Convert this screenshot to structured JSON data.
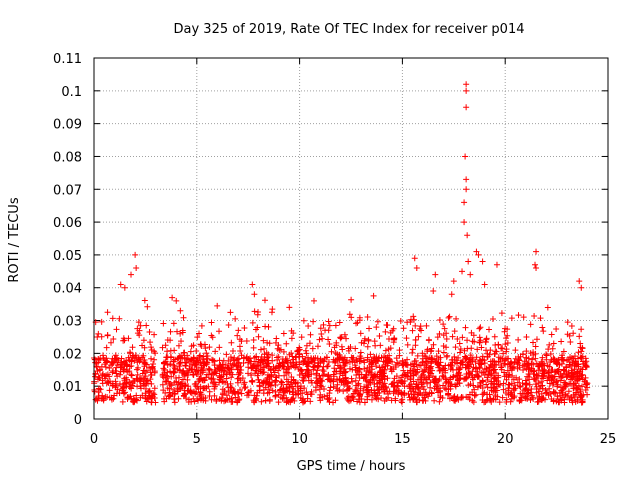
{
  "chart_data": {
    "type": "scatter",
    "title": "Day 325 of 2019, Rate Of TEC Index for receiver p014",
    "xlabel": "GPS time / hours",
    "ylabel": "ROTI / TECUs",
    "xlim": [
      0,
      25
    ],
    "ylim": [
      0,
      0.11
    ],
    "xticks": [
      0,
      5,
      10,
      15,
      20,
      25
    ],
    "xtick_labels": [
      "0",
      "5",
      "10",
      "15",
      "20",
      "25"
    ],
    "yticks": [
      0,
      0.01,
      0.02,
      0.03,
      0.04,
      0.05,
      0.06,
      0.07,
      0.08,
      0.09,
      0.1,
      0.11
    ],
    "ytick_labels": [
      "0",
      "0.01",
      "0.02",
      "0.03",
      "0.04",
      "0.05",
      "0.06",
      "0.07",
      "0.08",
      "0.09",
      "0.1",
      "0.11"
    ],
    "grid": true,
    "marker": "+",
    "color": "#ff0000",
    "x_coverage": [
      [
        0,
        3.0
      ],
      [
        3.3,
        24.0
      ]
    ],
    "bursts": [
      {
        "x": 1.3,
        "y": 0.041
      },
      {
        "x": 1.5,
        "y": 0.04
      },
      {
        "x": 1.8,
        "y": 0.044
      },
      {
        "x": 2.0,
        "y": 0.05
      },
      {
        "x": 2.05,
        "y": 0.046
      },
      {
        "x": 3.8,
        "y": 0.037
      },
      {
        "x": 4.0,
        "y": 0.036
      },
      {
        "x": 4.2,
        "y": 0.033
      },
      {
        "x": 7.7,
        "y": 0.041
      },
      {
        "x": 7.8,
        "y": 0.038
      },
      {
        "x": 9.5,
        "y": 0.034
      },
      {
        "x": 10.7,
        "y": 0.036
      },
      {
        "x": 15.6,
        "y": 0.049
      },
      {
        "x": 15.7,
        "y": 0.046
      },
      {
        "x": 16.6,
        "y": 0.044
      },
      {
        "x": 16.5,
        "y": 0.039
      },
      {
        "x": 17.4,
        "y": 0.038
      },
      {
        "x": 17.5,
        "y": 0.042
      },
      {
        "x": 17.9,
        "y": 0.045
      },
      {
        "x": 18.0,
        "y": 0.06
      },
      {
        "x": 18.0,
        "y": 0.066
      },
      {
        "x": 18.05,
        "y": 0.08
      },
      {
        "x": 18.1,
        "y": 0.07
      },
      {
        "x": 18.1,
        "y": 0.073
      },
      {
        "x": 18.1,
        "y": 0.095
      },
      {
        "x": 18.1,
        "y": 0.1
      },
      {
        "x": 18.1,
        "y": 0.102
      },
      {
        "x": 18.15,
        "y": 0.056
      },
      {
        "x": 18.2,
        "y": 0.048
      },
      {
        "x": 18.3,
        "y": 0.044
      },
      {
        "x": 18.6,
        "y": 0.051
      },
      {
        "x": 18.7,
        "y": 0.05
      },
      {
        "x": 18.9,
        "y": 0.048
      },
      {
        "x": 19.0,
        "y": 0.041
      },
      {
        "x": 19.6,
        "y": 0.047
      },
      {
        "x": 21.5,
        "y": 0.051
      },
      {
        "x": 21.45,
        "y": 0.047
      },
      {
        "x": 21.5,
        "y": 0.046
      },
      {
        "x": 23.6,
        "y": 0.042
      },
      {
        "x": 23.7,
        "y": 0.04
      }
    ]
  }
}
